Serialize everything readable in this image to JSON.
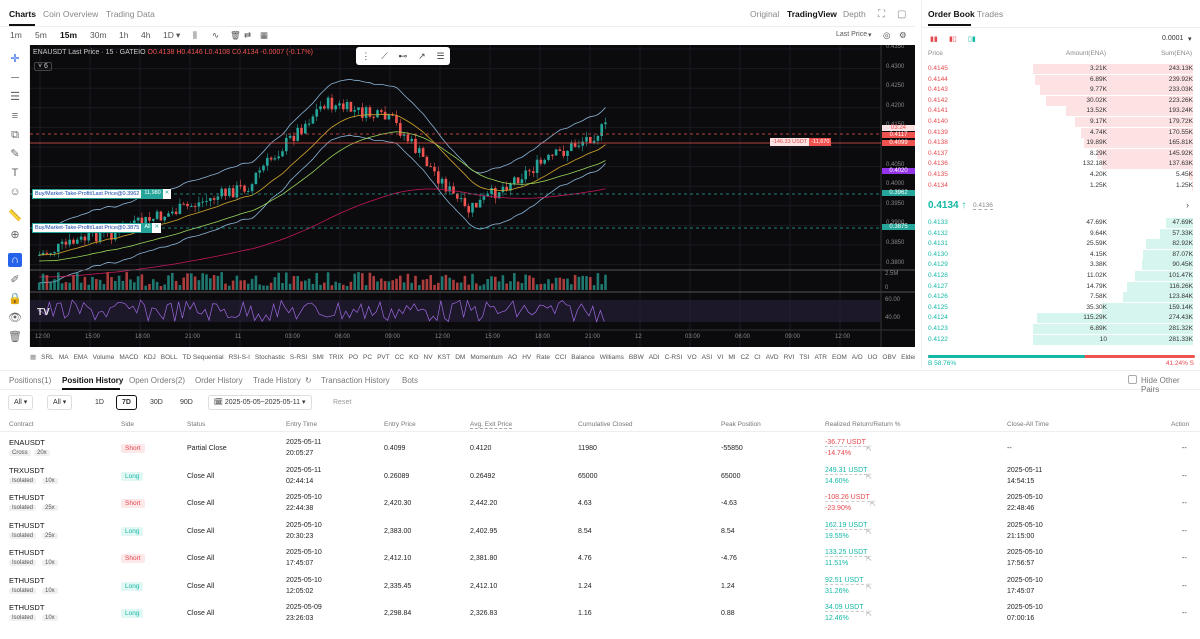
{
  "top_tabs": {
    "charts": "Charts",
    "coin_overview": "Coin Overview",
    "trading_data": "Trading Data",
    "original": "Original",
    "tradingview": "TradingView",
    "depth": "Depth"
  },
  "timeframes": [
    "1m",
    "5m",
    "15m",
    "30m",
    "1h",
    "4h",
    "1D"
  ],
  "chart": {
    "symbol_line": "ENAUSDT Last Price · 15 · GATEIO",
    "o": "O0.4138",
    "h": "H0.4146",
    "l": "L0.4108",
    "c": "C0.4134",
    "chg": "-0.0007 (-0.17%)",
    "last_price_label": "Last Price",
    "indicator_count": "6",
    "price_ticks": [
      "0.4350",
      "0.4300",
      "0.4250",
      "0.4200",
      "0.4150",
      "0.4100",
      "0.4050",
      "0.4000",
      "0.3950",
      "0.3900",
      "0.3850",
      "0.3800"
    ],
    "price_markers": {
      "p1": "0.4117",
      "p2": "0.4099",
      "p3": "0.4020",
      "p4": "0.3962",
      "p5": "0.3875",
      "time": "03:24"
    },
    "vol_tick": "2.5M",
    "vol_tick2": "0",
    "rsi_ticks": [
      "60.00",
      "40.00"
    ],
    "time_ticks": [
      "12:00",
      "15:00",
      "18:00",
      "21:00",
      "11",
      "03:00",
      "06:00",
      "09:00",
      "12:00",
      "15:00",
      "18:00",
      "21:00",
      "12",
      "03:00",
      "06:00",
      "09:00",
      "12:00"
    ],
    "orders": [
      {
        "label": "Buy/Market-Take-Profit/Last Price@0.3962",
        "qty": "11,980"
      },
      {
        "label": "Buy/Market-Take-Profit/Last Price@0.3875",
        "qty": "All"
      }
    ],
    "position_line": {
      "value": "-146.33 USDT",
      "qty": "-11,670"
    },
    "colors": {
      "up": "#26a69a",
      "down": "#ef5350"
    }
  },
  "indicators": [
    "SRL",
    "MA",
    "EMA",
    "Volume",
    "MACD",
    "KDJ",
    "BOLL",
    "TD Sequential",
    "RSI-S-I",
    "Stochastic",
    "S-RSI",
    "SMI",
    "TRIX",
    "PO",
    "PC",
    "PVT",
    "CC",
    "KO",
    "NV",
    "KST",
    "DM",
    "Momentum",
    "AO",
    "HV",
    "Rate",
    "CCI",
    "Balance",
    "Williams",
    "BBW",
    "ADI",
    "C-RSI",
    "VO",
    "ASI",
    "VI",
    "MI",
    "CZ",
    "CI",
    "AVD",
    "RVI",
    "TSI",
    "ATR",
    "EOM",
    "A/D",
    "UO",
    "OBV",
    "Elder's",
    "CMF",
    "CO",
    "FT",
    "MF"
  ],
  "orderbook": {
    "title": "Order Book",
    "trades": "Trades",
    "precision": "0.0001",
    "headers": {
      "price": "Price",
      "amount": "Amount(ENA)",
      "sum": "Sum(ENA)"
    },
    "asks": [
      {
        "p": "0.4145",
        "a": "3.21K",
        "s": "243.13K"
      },
      {
        "p": "0.4144",
        "a": "6.89K",
        "s": "239.92K"
      },
      {
        "p": "0.4143",
        "a": "9.77K",
        "s": "233.03K"
      },
      {
        "p": "0.4142",
        "a": "30.02K",
        "s": "223.26K"
      },
      {
        "p": "0.4141",
        "a": "13.52K",
        "s": "193.24K"
      },
      {
        "p": "0.4140",
        "a": "9.17K",
        "s": "179.72K"
      },
      {
        "p": "0.4139",
        "a": "4.74K",
        "s": "170.55K"
      },
      {
        "p": "0.4138",
        "a": "19.89K",
        "s": "165.81K"
      },
      {
        "p": "0.4137",
        "a": "8.29K",
        "s": "145.92K"
      },
      {
        "p": "0.4136",
        "a": "132.18K",
        "s": "137.63K"
      },
      {
        "p": "0.4135",
        "a": "4.20K",
        "s": "5.45K"
      },
      {
        "p": "0.4134",
        "a": "1.25K",
        "s": "1.25K"
      }
    ],
    "mid": {
      "price": "0.4134 ↑",
      "ref": "0.4136"
    },
    "bids": [
      {
        "p": "0.4133",
        "a": "47.69K",
        "s": "47.69K"
      },
      {
        "p": "0.4132",
        "a": "9.64K",
        "s": "57.33K"
      },
      {
        "p": "0.4131",
        "a": "25.59K",
        "s": "82.92K"
      },
      {
        "p": "0.4130",
        "a": "4.15K",
        "s": "87.07K"
      },
      {
        "p": "0.4129",
        "a": "3.38K",
        "s": "90.45K"
      },
      {
        "p": "0.4128",
        "a": "11.02K",
        "s": "101.47K"
      },
      {
        "p": "0.4127",
        "a": "14.79K",
        "s": "116.26K"
      },
      {
        "p": "0.4126",
        "a": "7.58K",
        "s": "123.84K"
      },
      {
        "p": "0.4125",
        "a": "35.30K",
        "s": "159.14K"
      },
      {
        "p": "0.4124",
        "a": "115.29K",
        "s": "274.43K"
      },
      {
        "p": "0.4123",
        "a": "6.89K",
        "s": "281.32K"
      },
      {
        "p": "0.4122",
        "a": "10",
        "s": "281.33K"
      }
    ],
    "ratio_b": "B 58.76%",
    "ratio_s": "41.24% S",
    "ratio_b_frac": 0.5876
  },
  "bottom_tabs": [
    "Positions(1)",
    "Position History",
    "Open Orders(2)",
    "Order History",
    "Trade History",
    "Transaction History",
    "Bots"
  ],
  "hide_other": "Hide Other Pairs",
  "filters": {
    "all1": "All",
    "all2": "All",
    "d1": "1D",
    "d7": "7D",
    "d30": "30D",
    "d90": "90D",
    "date": "2025-05-05~2025-05-11",
    "reset": "Reset"
  },
  "columns": [
    "Contract",
    "Side",
    "Status",
    "Entry Time",
    "Entry Price",
    "Avg. Exit Price",
    "Cumulative Closed",
    "Peak Position",
    "Realized Return/Return %",
    "Close-All Time",
    "Action"
  ],
  "rows": [
    {
      "contract": "ENAUSDT",
      "m": "Cross",
      "lev": "20x",
      "side": "Short",
      "status": "Partial Close",
      "t1": "2025-05-11",
      "t2": "20:05:27",
      "entry": "0.4099",
      "exit": "0.4120",
      "closed": "11980",
      "peak": "-55850",
      "ret": "-36.77 USDT",
      "pct": "-14.74%",
      "c1": "--",
      "c2": "",
      "act": "--"
    },
    {
      "contract": "TRXUSDT",
      "m": "Isolated",
      "lev": "10x",
      "side": "Long",
      "status": "Close All",
      "t1": "2025-05-11",
      "t2": "02:44:14",
      "entry": "0.26089",
      "exit": "0.26492",
      "closed": "65000",
      "peak": "65000",
      "ret": "249.31 USDT",
      "pct": "14.60%",
      "c1": "2025-05-11",
      "c2": "14:54:15",
      "act": "--"
    },
    {
      "contract": "ETHUSDT",
      "m": "Isolated",
      "lev": "25x",
      "side": "Short",
      "status": "Close All",
      "t1": "2025-05-10",
      "t2": "22:44:38",
      "entry": "2,420.30",
      "exit": "2,442.20",
      "closed": "4.63",
      "peak": "-4.63",
      "ret": "-108.26 USDT",
      "pct": "-23.90%",
      "c1": "2025-05-10",
      "c2": "22:48:46",
      "act": "--"
    },
    {
      "contract": "ETHUSDT",
      "m": "Isolated",
      "lev": "25x",
      "side": "Long",
      "status": "Close All",
      "t1": "2025-05-10",
      "t2": "20:30:23",
      "entry": "2,383.00",
      "exit": "2,402.95",
      "closed": "8.54",
      "peak": "8.54",
      "ret": "162.19 USDT",
      "pct": "19.55%",
      "c1": "2025-05-10",
      "c2": "21:15:00",
      "act": "--"
    },
    {
      "contract": "ETHUSDT",
      "m": "Isolated",
      "lev": "10x",
      "side": "Short",
      "status": "Close All",
      "t1": "2025-05-10",
      "t2": "17:45:07",
      "entry": "2,412.10",
      "exit": "2,381.80",
      "closed": "4.76",
      "peak": "-4.76",
      "ret": "133.25 USDT",
      "pct": "11.51%",
      "c1": "2025-05-10",
      "c2": "17:56:57",
      "act": "--"
    },
    {
      "contract": "ETHUSDT",
      "m": "Isolated",
      "lev": "10x",
      "side": "Long",
      "status": "Close All",
      "t1": "2025-05-10",
      "t2": "12:05:02",
      "entry": "2,335.45",
      "exit": "2,412.10",
      "closed": "1.24",
      "peak": "1.24",
      "ret": "92.51 USDT",
      "pct": "31.26%",
      "c1": "2025-05-10",
      "c2": "17:45:07",
      "act": "--"
    },
    {
      "contract": "ETHUSDT",
      "m": "Isolated",
      "lev": "10x",
      "side": "Long",
      "status": "Close All",
      "t1": "2025-05-09",
      "t2": "23:26:03",
      "entry": "2,298.84",
      "exit": "2,326.83",
      "closed": "1.16",
      "peak": "0.88",
      "ret": "34.09 USDT",
      "pct": "12.46%",
      "c1": "2025-05-10",
      "c2": "07:00:16",
      "act": "--"
    }
  ]
}
